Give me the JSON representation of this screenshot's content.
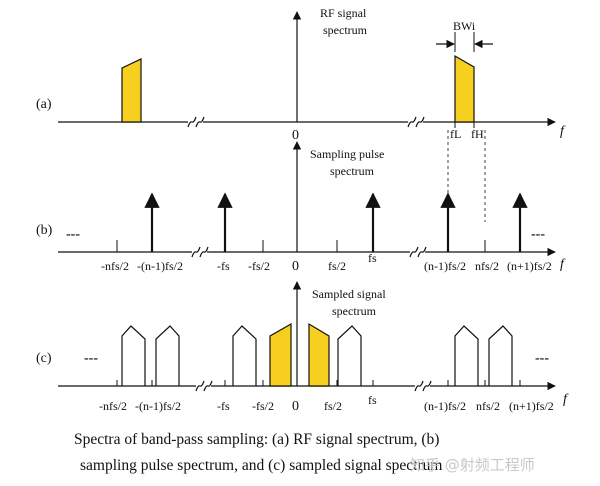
{
  "colors": {
    "band": "#f7cf1e",
    "ink": "#111111",
    "watermark": "#c8c8c8"
  },
  "panel_a": {
    "tag": "(a)",
    "title": [
      "RF signal",
      "spectrum"
    ],
    "axis_var": "f",
    "origin": "0",
    "bandwidth": "BWi",
    "f_low": "fL",
    "f_high": "fH"
  },
  "panel_b": {
    "tag": "(b)",
    "title": [
      "Sampling pulse",
      "spectrum"
    ],
    "axis_var": "f",
    "origin": "0",
    "ellipsis": "---",
    "labels": [
      "-nfs/2",
      "-(n-1)fs/2",
      "-fs",
      "-fs/2",
      "fs/2",
      "fs",
      "(n-1)fs/2",
      "nfs/2",
      "(n+1)fs/2"
    ]
  },
  "panel_c": {
    "tag": "(c)",
    "title": [
      "Sampled signal",
      "spectrum"
    ],
    "axis_var": "f",
    "origin": "0",
    "ellipsis": "---",
    "labels": [
      "-nfs/2",
      "-(n-1)fs/2",
      "-fs",
      "-fs/2",
      "fs/2",
      "fs",
      "(n-1)fs/2",
      "nfs/2",
      "(n+1)fs/2"
    ]
  },
  "caption": [
    "Spectra of band-pass sampling: (a) RF signal spectrum, (b)",
    "sampling pulse spectrum, and (c) sampled signal spectrum"
  ],
  "watermark": "知乎 @射频工程师"
}
